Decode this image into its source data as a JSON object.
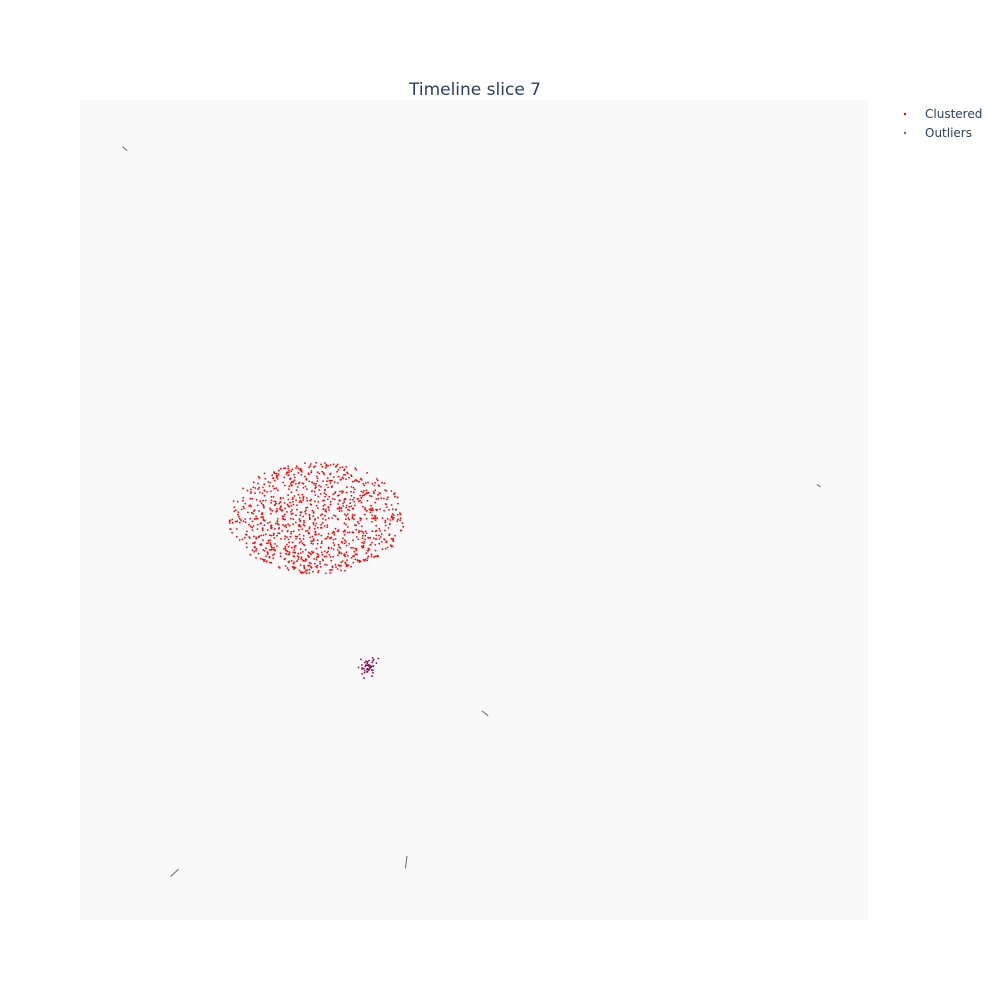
{
  "chart_data": {
    "type": "scatter",
    "title": "Timeline slice 7",
    "xlabel": "",
    "ylabel": "",
    "xlim": [
      0,
      100
    ],
    "ylim": [
      0,
      100
    ],
    "grid": false,
    "axes_visible": false,
    "legend_position": "top-right",
    "background_color": "#f9f9f9",
    "series": [
      {
        "name": "Clustered",
        "color": "#ff0000",
        "clusters": [
          {
            "cx": 30,
            "cy": 49,
            "sx": 7.2,
            "sy": 3.4,
            "n": 1100,
            "color": "#ff0000"
          },
          {
            "cx": 36.5,
            "cy": 31,
            "sx": 0.9,
            "sy": 0.9,
            "n": 50,
            "color": "#8b0a50"
          }
        ]
      },
      {
        "name": "Outliers",
        "color": "#6a6a6a",
        "segments": [
          {
            "x": [
              5.4,
              6.0
            ],
            "y": [
              94.3,
              93.8
            ]
          },
          {
            "x": [
              93.5,
              94.0
            ],
            "y": [
              53.1,
              52.8
            ]
          },
          {
            "x": [
              51.0,
              51.8
            ],
            "y": [
              25.5,
              24.9
            ]
          },
          {
            "x": [
              11.5,
              12.5
            ],
            "y": [
              5.3,
              6.2
            ]
          },
          {
            "x": [
              41.3,
              41.5
            ],
            "y": [
              6.3,
              7.8
            ]
          }
        ]
      }
    ]
  }
}
